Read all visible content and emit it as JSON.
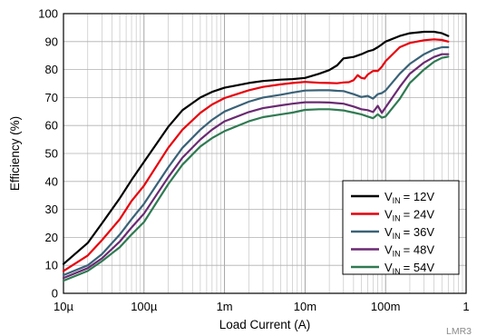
{
  "chart_data": {
    "type": "line",
    "xlabel": "Load Current (A)",
    "ylabel": "Efficiency (%)",
    "xscale": "log",
    "xlim": [
      1e-05,
      1
    ],
    "ylim": [
      0,
      100
    ],
    "x_ticks": [
      {
        "value": 1e-05,
        "label": "10µ"
      },
      {
        "value": 0.0001,
        "label": "100µ"
      },
      {
        "value": 0.001,
        "label": "1m"
      },
      {
        "value": 0.01,
        "label": "10m"
      },
      {
        "value": 0.1,
        "label": "100m"
      },
      {
        "value": 1,
        "label": "1"
      }
    ],
    "y_ticks": [
      0,
      10,
      20,
      30,
      40,
      50,
      60,
      70,
      80,
      90,
      100
    ],
    "grid": true,
    "legend_position": "bottom-right",
    "watermark": "LMR3",
    "series": [
      {
        "legend_main": "V",
        "legend_sub": "IN",
        "legend_value": "= 12V",
        "color": "#000000",
        "x": [
          1e-05,
          2e-05,
          3e-05,
          5e-05,
          7e-05,
          0.0001,
          0.0002,
          0.0003,
          0.0005,
          0.0007,
          0.001,
          0.002,
          0.003,
          0.005,
          0.007,
          0.01,
          0.015,
          0.02,
          0.025,
          0.03,
          0.04,
          0.05,
          0.06,
          0.07,
          0.08,
          0.09,
          0.1,
          0.15,
          0.2,
          0.3,
          0.4,
          0.5,
          0.6
        ],
        "y": [
          10.5,
          18,
          25,
          34,
          40.5,
          47,
          59.5,
          65.5,
          70,
          72,
          73.5,
          75.2,
          75.9,
          76.4,
          76.6,
          77,
          78.5,
          79.8,
          81.5,
          84,
          84.5,
          85.5,
          86.5,
          87,
          88,
          89,
          90,
          92,
          93,
          93.5,
          93.5,
          93,
          92
        ]
      },
      {
        "legend_main": "V",
        "legend_sub": "IN",
        "legend_value": "= 24V",
        "color": "#e8000b",
        "x": [
          1e-05,
          2e-05,
          3e-05,
          5e-05,
          7e-05,
          0.0001,
          0.0002,
          0.0003,
          0.0005,
          0.0007,
          0.001,
          0.002,
          0.003,
          0.005,
          0.007,
          0.01,
          0.015,
          0.02,
          0.025,
          0.03,
          0.035,
          0.04,
          0.045,
          0.05,
          0.055,
          0.06,
          0.07,
          0.08,
          0.09,
          0.1,
          0.15,
          0.2,
          0.3,
          0.4,
          0.5,
          0.6
        ],
        "y": [
          8,
          13.5,
          19,
          26.5,
          33,
          38.5,
          52,
          58.5,
          64.5,
          67.5,
          69.8,
          72.6,
          73.8,
          74.7,
          75.2,
          75.6,
          75.3,
          75.2,
          75.1,
          75.4,
          75.5,
          76.2,
          78,
          77,
          76.8,
          78.2,
          79.5,
          79.5,
          81,
          83,
          88,
          89.5,
          90.5,
          90.8,
          90.6,
          90
        ]
      },
      {
        "legend_main": "V",
        "legend_sub": "IN",
        "legend_value": "= 36V",
        "color": "#3a6278",
        "x": [
          1e-05,
          2e-05,
          3e-05,
          5e-05,
          7e-05,
          0.0001,
          0.0002,
          0.0003,
          0.0005,
          0.0007,
          0.001,
          0.002,
          0.003,
          0.005,
          0.007,
          0.01,
          0.015,
          0.02,
          0.025,
          0.03,
          0.04,
          0.05,
          0.06,
          0.07,
          0.08,
          0.09,
          0.1,
          0.15,
          0.2,
          0.3,
          0.4,
          0.5,
          0.6
        ],
        "y": [
          6.5,
          10,
          14,
          21,
          26.5,
          32,
          45,
          52,
          58.5,
          62,
          65,
          68.5,
          70,
          71,
          71.8,
          72.5,
          72.6,
          72.6,
          72.4,
          72.3,
          71.2,
          70.2,
          70.6,
          69.6,
          71.2,
          71.6,
          72.5,
          78.5,
          82,
          85.5,
          87.2,
          88,
          88
        ]
      },
      {
        "legend_main": "V",
        "legend_sub": "IN",
        "legend_value": "= 48V",
        "color": "#6a2a72",
        "x": [
          1e-05,
          2e-05,
          3e-05,
          5e-05,
          7e-05,
          0.0001,
          0.0002,
          0.0003,
          0.0005,
          0.0007,
          0.001,
          0.002,
          0.003,
          0.005,
          0.007,
          0.01,
          0.015,
          0.02,
          0.025,
          0.03,
          0.04,
          0.05,
          0.06,
          0.07,
          0.08,
          0.09,
          0.1,
          0.15,
          0.2,
          0.3,
          0.4,
          0.5,
          0.6
        ],
        "y": [
          5.5,
          9,
          12.5,
          18.5,
          23.5,
          28.5,
          41.5,
          48.5,
          55,
          58.5,
          61.5,
          64.8,
          66.2,
          67.2,
          67.8,
          68.3,
          68.3,
          68.2,
          68,
          67.8,
          66.8,
          65.8,
          65.5,
          64.8,
          67,
          64.5,
          66.5,
          73.8,
          78.5,
          82.5,
          84.5,
          85.5,
          85.5
        ]
      },
      {
        "legend_main": "V",
        "legend_sub": "IN",
        "legend_value": "= 54V",
        "color": "#2f7a52",
        "x": [
          1e-05,
          2e-05,
          3e-05,
          5e-05,
          7e-05,
          0.0001,
          0.0002,
          0.0003,
          0.0005,
          0.0007,
          0.001,
          0.002,
          0.003,
          0.005,
          0.007,
          0.01,
          0.015,
          0.02,
          0.025,
          0.03,
          0.04,
          0.05,
          0.06,
          0.07,
          0.08,
          0.09,
          0.1,
          0.15,
          0.2,
          0.3,
          0.4,
          0.5,
          0.6
        ],
        "y": [
          4.5,
          8,
          11.5,
          16.5,
          21,
          25.5,
          39,
          46,
          52.5,
          55.5,
          58,
          61.5,
          63,
          64,
          64.6,
          65.6,
          65.8,
          65.8,
          65.6,
          65.4,
          64.6,
          64,
          63.2,
          62.6,
          64,
          62.8,
          63.2,
          69.5,
          75.2,
          80,
          82.8,
          84.2,
          84.6
        ]
      }
    ]
  }
}
